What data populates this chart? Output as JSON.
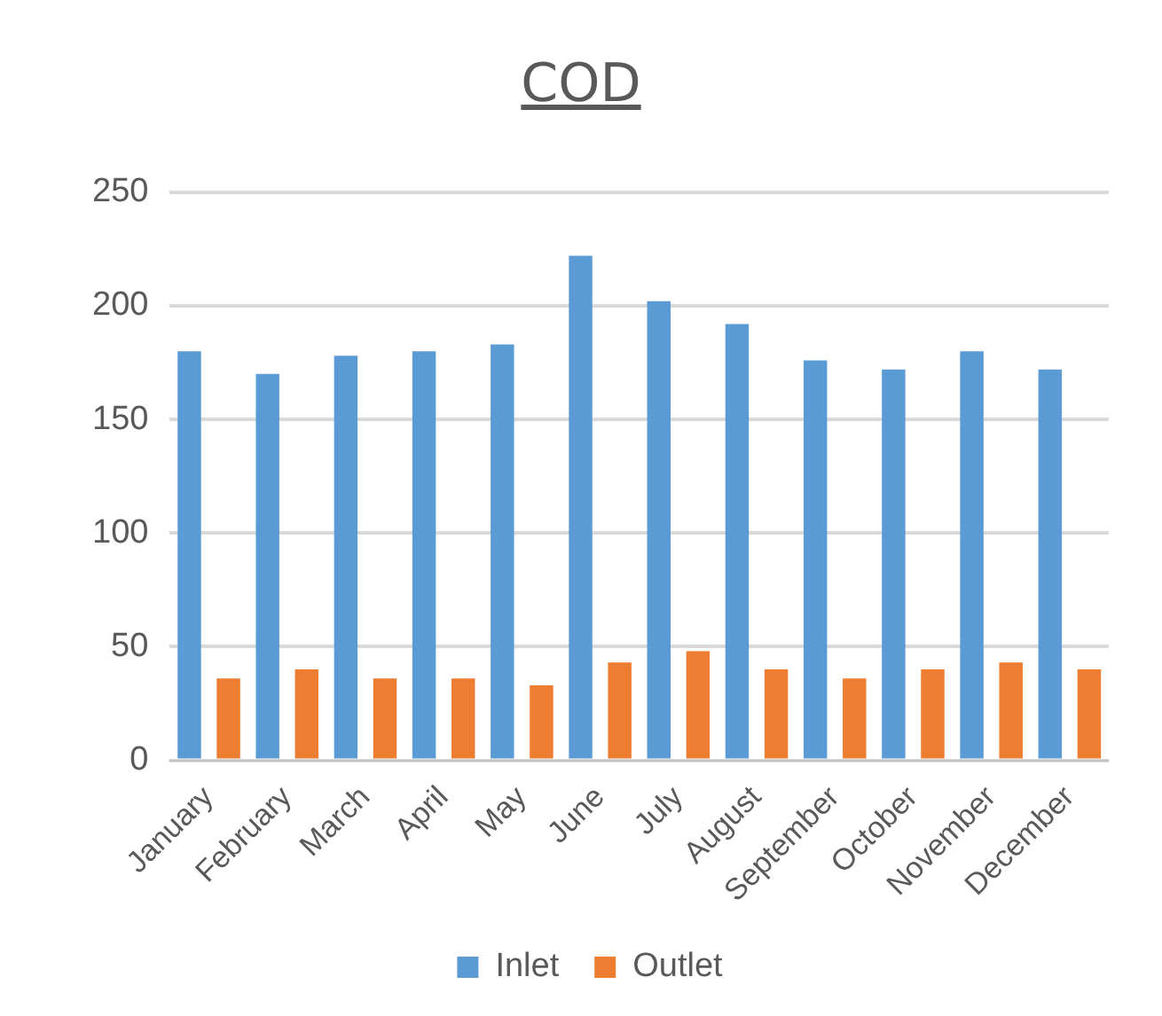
{
  "chart_data": {
    "type": "bar",
    "title": "COD",
    "categories": [
      "January",
      "February",
      "March",
      "April",
      "May",
      "June",
      "July",
      "August",
      "September",
      "October",
      "November",
      "December"
    ],
    "series": [
      {
        "name": "Inlet",
        "color": "#5b9bd5",
        "values": [
          180,
          170,
          178,
          180,
          183,
          222,
          202,
          192,
          176,
          172,
          180,
          172
        ]
      },
      {
        "name": "Outlet",
        "color": "#ed7d31",
        "values": [
          36,
          40,
          36,
          36,
          33,
          43,
          48,
          40,
          36,
          40,
          43,
          40
        ]
      }
    ],
    "ylim": [
      0,
      250
    ],
    "yticks": [
      0,
      50,
      100,
      150,
      200,
      250
    ],
    "grid": "y",
    "legend": "bottom"
  }
}
